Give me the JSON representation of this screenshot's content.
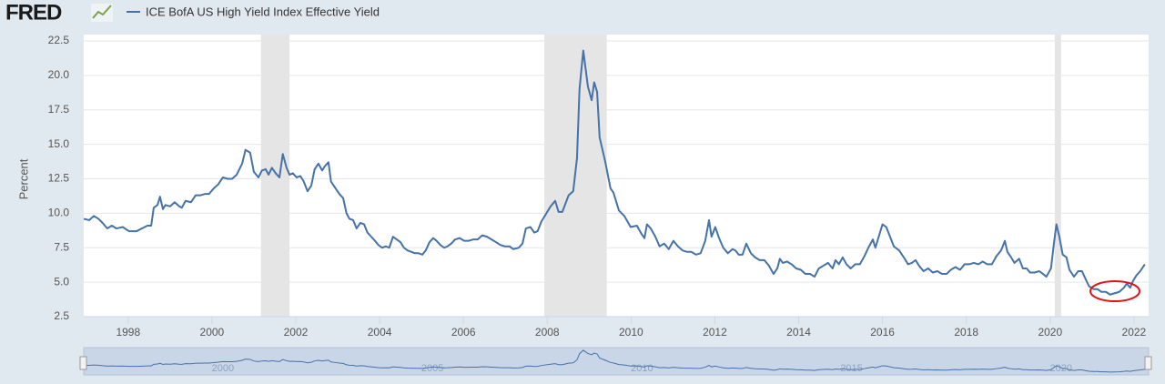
{
  "source_logo": "FRED",
  "chart_data": {
    "type": "line",
    "y_label": "Percent",
    "x": [
      1996.94,
      1997.07,
      1997.18,
      1997.29,
      1997.39,
      1997.5,
      1997.61,
      1997.72,
      1997.87,
      1998.02,
      1998.2,
      1998.33,
      1998.46,
      1998.55,
      1998.61,
      1998.7,
      1998.76,
      1998.83,
      1998.89,
      1999.0,
      1999.11,
      1999.22,
      1999.28,
      1999.37,
      1999.5,
      1999.61,
      1999.72,
      1999.83,
      1999.93,
      2000.04,
      2000.15,
      2000.26,
      2000.37,
      2000.48,
      2000.59,
      2000.72,
      2000.8,
      2000.91,
      2001.0,
      2001.11,
      2001.19,
      2001.28,
      2001.35,
      2001.43,
      2001.52,
      2001.61,
      2001.69,
      2001.78,
      2001.85,
      2001.93,
      2002.02,
      2002.11,
      2002.19,
      2002.28,
      2002.37,
      2002.45,
      2002.54,
      2002.63,
      2002.69,
      2002.78,
      2002.84,
      2002.95,
      2003.04,
      2003.13,
      2003.21,
      2003.28,
      2003.37,
      2003.45,
      2003.54,
      2003.63,
      2003.71,
      2003.8,
      2003.89,
      2003.97,
      2004.06,
      2004.15,
      2004.23,
      2004.32,
      2004.41,
      2004.5,
      2004.58,
      2004.67,
      2004.76,
      2004.84,
      2004.93,
      2005.02,
      2005.1,
      2005.19,
      2005.28,
      2005.36,
      2005.45,
      2005.54,
      2005.62,
      2005.71,
      2005.8,
      2005.91,
      2006.02,
      2006.12,
      2006.23,
      2006.34,
      2006.45,
      2006.56,
      2006.67,
      2006.78,
      2006.88,
      2006.99,
      2007.1,
      2007.19,
      2007.32,
      2007.41,
      2007.49,
      2007.6,
      2007.69,
      2007.77,
      2007.86,
      2008.08,
      2008.19,
      2008.27,
      2008.36,
      2008.51,
      2008.62,
      2008.71,
      2008.77,
      2008.86,
      2008.97,
      2009.06,
      2009.12,
      2009.19,
      2009.25,
      2009.38,
      2009.51,
      2009.58,
      2009.71,
      2009.84,
      2009.99,
      2010.14,
      2010.25,
      2010.32,
      2010.38,
      2010.47,
      2010.58,
      2010.68,
      2010.79,
      2010.9,
      2011.01,
      2011.12,
      2011.23,
      2011.34,
      2011.44,
      2011.55,
      2011.66,
      2011.77,
      2011.86,
      2011.92,
      2012.01,
      2012.1,
      2012.2,
      2012.31,
      2012.42,
      2012.49,
      2012.57,
      2012.66,
      2012.75,
      2012.86,
      2012.96,
      2013.07,
      2013.18,
      2013.29,
      2013.4,
      2013.49,
      2013.55,
      2013.62,
      2013.72,
      2013.83,
      2013.94,
      2014.05,
      2014.16,
      2014.27,
      2014.38,
      2014.48,
      2014.59,
      2014.7,
      2014.81,
      2014.88,
      2014.96,
      2015.05,
      2015.14,
      2015.24,
      2015.35,
      2015.46,
      2015.57,
      2015.68,
      2015.77,
      2015.83,
      2015.92,
      2016.0,
      2016.09,
      2016.18,
      2016.27,
      2016.4,
      2016.53,
      2016.61,
      2016.7,
      2016.79,
      2016.87,
      2016.98,
      2017.09,
      2017.2,
      2017.31,
      2017.42,
      2017.53,
      2017.63,
      2017.74,
      2017.85,
      2017.96,
      2018.07,
      2018.18,
      2018.29,
      2018.39,
      2018.5,
      2018.61,
      2018.72,
      2018.83,
      2018.92,
      2018.98,
      2019.07,
      2019.15,
      2019.26,
      2019.35,
      2019.44,
      2019.52,
      2019.63,
      2019.74,
      2019.83,
      2019.91,
      2020.02,
      2020.09,
      2020.15,
      2020.22,
      2020.3,
      2020.39,
      2020.46,
      2020.57,
      2020.67,
      2020.76,
      2020.85,
      2020.93,
      2021.04,
      2021.13,
      2021.22,
      2021.33,
      2021.43,
      2021.54,
      2021.65,
      2021.76,
      2021.83,
      2021.91,
      2021.98,
      2022.06,
      2022.15,
      2022.26
    ],
    "series": [
      {
        "name": "ICE BofA US High Yield Index Effective Yield",
        "color": "#4572a7",
        "values": [
          9.6,
          9.5,
          9.8,
          9.6,
          9.3,
          8.9,
          9.1,
          8.9,
          9.0,
          8.7,
          8.7,
          8.9,
          9.1,
          9.1,
          10.4,
          10.6,
          11.2,
          10.3,
          10.6,
          10.5,
          10.8,
          10.5,
          10.4,
          10.9,
          10.8,
          11.3,
          11.3,
          11.4,
          11.4,
          11.8,
          12.1,
          12.6,
          12.5,
          12.5,
          12.8,
          13.6,
          14.6,
          14.4,
          13.0,
          12.6,
          13.1,
          13.2,
          12.8,
          13.3,
          12.9,
          12.6,
          14.3,
          13.3,
          12.8,
          12.9,
          12.6,
          12.7,
          12.3,
          11.6,
          12.0,
          13.2,
          13.6,
          13.1,
          13.4,
          13.7,
          12.3,
          11.8,
          11.4,
          11.1,
          10.0,
          9.6,
          9.5,
          8.9,
          9.3,
          9.2,
          8.6,
          8.3,
          8.0,
          7.7,
          7.5,
          7.6,
          7.5,
          8.3,
          8.1,
          7.9,
          7.5,
          7.3,
          7.2,
          7.1,
          7.1,
          7.0,
          7.3,
          7.9,
          8.2,
          8.0,
          7.7,
          7.5,
          7.6,
          7.8,
          8.1,
          8.2,
          8.0,
          8.0,
          8.1,
          8.1,
          8.4,
          8.3,
          8.1,
          7.9,
          7.7,
          7.6,
          7.6,
          7.4,
          7.5,
          7.8,
          8.9,
          9.0,
          8.6,
          8.7,
          9.4,
          10.5,
          10.9,
          10.1,
          10.1,
          11.3,
          11.6,
          14.0,
          19.0,
          21.8,
          19.2,
          18.2,
          19.5,
          18.8,
          15.5,
          13.8,
          11.8,
          11.5,
          10.2,
          9.8,
          9.0,
          9.1,
          8.5,
          8.2,
          9.2,
          8.9,
          8.3,
          7.6,
          7.8,
          7.4,
          8.0,
          7.6,
          7.3,
          7.2,
          7.2,
          7.0,
          7.1,
          8.0,
          9.5,
          8.3,
          9.0,
          8.2,
          7.5,
          7.1,
          7.4,
          7.3,
          7.0,
          7.0,
          7.8,
          7.1,
          6.8,
          6.6,
          6.6,
          6.2,
          5.6,
          6.0,
          6.7,
          6.4,
          6.5,
          6.3,
          6.0,
          5.9,
          5.6,
          5.6,
          5.4,
          6.0,
          6.2,
          6.4,
          6.0,
          6.6,
          6.3,
          6.8,
          6.3,
          6.0,
          6.3,
          6.3,
          6.9,
          7.6,
          8.1,
          7.5,
          8.4,
          9.2,
          9.0,
          8.3,
          7.6,
          7.3,
          6.7,
          6.3,
          6.4,
          6.6,
          6.2,
          5.8,
          6.0,
          5.7,
          5.8,
          5.6,
          5.6,
          5.9,
          6.1,
          5.9,
          6.3,
          6.3,
          6.4,
          6.3,
          6.5,
          6.3,
          6.3,
          6.9,
          7.3,
          8.0,
          7.2,
          6.8,
          6.4,
          6.7,
          6.0,
          6.0,
          5.7,
          5.7,
          5.8,
          5.6,
          5.4,
          6.0,
          7.8,
          9.2,
          8.3,
          7.0,
          6.8,
          5.9,
          5.4,
          5.8,
          5.8,
          5.2,
          4.7,
          4.5,
          4.5,
          4.3,
          4.3,
          4.1,
          4.2,
          4.3,
          4.6,
          4.9,
          4.6,
          5.1,
          5.5,
          5.8,
          6.3
        ]
      }
    ],
    "xlim": [
      1996.94,
      2022.35
    ],
    "ylim": [
      2.5,
      22.5
    ],
    "xticks": [
      1998,
      2000,
      2002,
      2004,
      2006,
      2008,
      2010,
      2012,
      2014,
      2016,
      2018,
      2020,
      2022
    ],
    "yticks": [
      2.5,
      {
        "value": 5,
        "label": "5.0"
      },
      7.5,
      {
        "value": 10,
        "label": "10.0"
      },
      12.5,
      {
        "value": 15,
        "label": "15.0"
      },
      17.5,
      {
        "value": 20,
        "label": "20.0"
      },
      22.5
    ],
    "grid": true,
    "recessions": [
      [
        2001.17,
        2001.85
      ],
      [
        2007.93,
        2009.42
      ],
      [
        2020.11,
        2020.26
      ]
    ],
    "recession_color": "#e5e5e5",
    "navigator_ticks": [
      2000,
      2005,
      2010,
      2015,
      2020
    ]
  }
}
